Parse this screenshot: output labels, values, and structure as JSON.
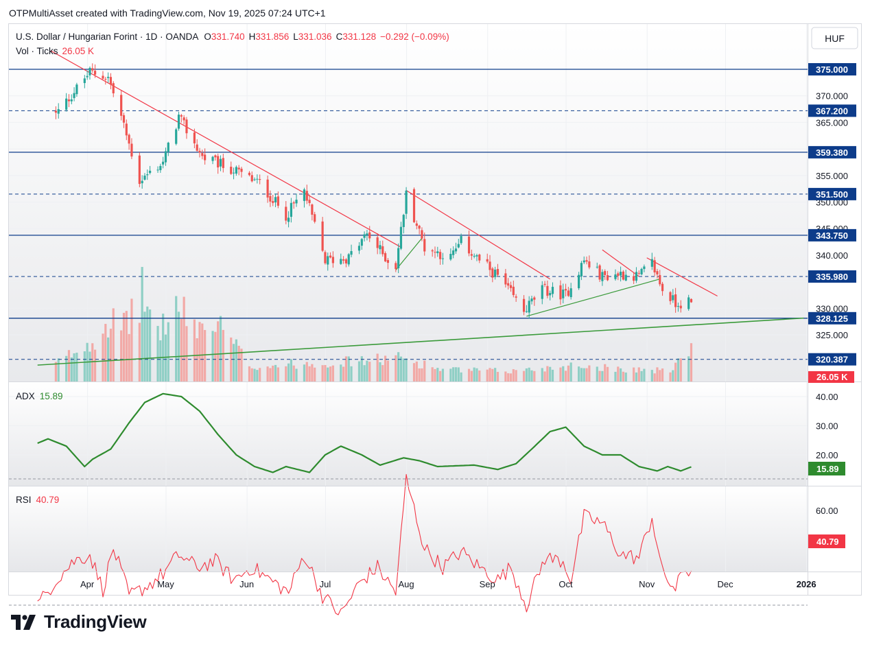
{
  "header": {
    "credit": "OTPMultiAsset created with TradingView.com, Nov 19, 2025 07:24 UTC+1"
  },
  "logo": {
    "text": "TradingView",
    "icon": "tradingview-logo-icon"
  },
  "main_pane": {
    "symbol": "U.S. Dollar / Hungarian Forint · 1D · OANDA",
    "ohlc": {
      "o_label": "O",
      "o": "331.740",
      "h_label": "H",
      "h": "331.856",
      "l_label": "L",
      "l": "331.036",
      "c_label": "C",
      "c": "331.128",
      "change": "−0.292 (−0.09%)"
    },
    "volume_legend": {
      "label": "Vol · Ticks",
      "value": "26.05 K"
    },
    "currency_button": "HUF"
  },
  "adx_pane": {
    "label": "ADX",
    "value": "15.89"
  },
  "rsi_pane": {
    "label": "RSI",
    "value": "40.79"
  },
  "colors": {
    "up": "#26a69a",
    "down": "#ef5350",
    "level_line": "#0d3c8a",
    "trendline_down": "#f23645",
    "trendline_up": "#3a9a3a",
    "adx_line": "#2e8b2e",
    "rsi_line": "#f23645"
  },
  "chart_data": [
    {
      "type": "candlestick",
      "name": "price",
      "x_axis": {
        "ticks": [
          "Apr",
          "May",
          "Jun",
          "Jul",
          "Aug",
          "Sep",
          "Oct",
          "Nov",
          "Dec",
          "2026"
        ]
      },
      "y_axis": {
        "range": [
          320,
          377
        ],
        "ticks": [
          "370.000",
          "365.000",
          "355.000",
          "350.000",
          "345.000",
          "340.000",
          "330.000",
          "325.000"
        ]
      },
      "price_levels": [
        {
          "value": 375.0,
          "label": "375.000",
          "style": "solid"
        },
        {
          "value": 367.2,
          "label": "367.200",
          "style": "dashed"
        },
        {
          "value": 359.38,
          "label": "359.380",
          "style": "solid"
        },
        {
          "value": 351.5,
          "label": "351.500",
          "style": "dashed"
        },
        {
          "value": 343.75,
          "label": "343.750",
          "style": "solid"
        },
        {
          "value": 335.98,
          "label": "335.980",
          "style": "dashed"
        },
        {
          "value": 328.125,
          "label": "328.125",
          "style": "solid"
        },
        {
          "value": 320.387,
          "label": "320.387",
          "style": "dashed"
        }
      ],
      "key_closes": [
        {
          "date": "2025-03-20",
          "close": 366.5
        },
        {
          "date": "2025-04-02",
          "close": 374.5
        },
        {
          "date": "2025-04-09",
          "close": 373.5
        },
        {
          "date": "2025-04-14",
          "close": 366.0
        },
        {
          "date": "2025-04-21",
          "close": 354.0
        },
        {
          "date": "2025-04-30",
          "close": 357.5
        },
        {
          "date": "2025-05-06",
          "close": 366.0
        },
        {
          "date": "2025-05-15",
          "close": 358.5
        },
        {
          "date": "2025-05-27",
          "close": 356.0
        },
        {
          "date": "2025-06-06",
          "close": 353.5
        },
        {
          "date": "2025-06-16",
          "close": 347.5
        },
        {
          "date": "2025-06-23",
          "close": 352.0
        },
        {
          "date": "2025-07-01",
          "close": 339.0
        },
        {
          "date": "2025-07-10",
          "close": 339.5
        },
        {
          "date": "2025-07-17",
          "close": 344.0
        },
        {
          "date": "2025-07-25",
          "close": 339.0
        },
        {
          "date": "2025-07-28",
          "close": 338.0
        },
        {
          "date": "2025-08-01",
          "close": 351.5
        },
        {
          "date": "2025-08-08",
          "close": 341.5
        },
        {
          "date": "2025-08-18",
          "close": 339.5
        },
        {
          "date": "2025-08-22",
          "close": 342.5
        },
        {
          "date": "2025-08-29",
          "close": 339.0
        },
        {
          "date": "2025-09-05",
          "close": 336.0
        },
        {
          "date": "2025-09-15",
          "close": 329.5
        },
        {
          "date": "2025-09-22",
          "close": 333.5
        },
        {
          "date": "2025-10-01",
          "close": 332.5
        },
        {
          "date": "2025-10-08",
          "close": 339.0
        },
        {
          "date": "2025-10-15",
          "close": 336.0
        },
        {
          "date": "2025-10-22",
          "close": 336.5
        },
        {
          "date": "2025-10-29",
          "close": 336.0
        },
        {
          "date": "2025-11-03",
          "close": 338.5
        },
        {
          "date": "2025-11-07",
          "close": 333.5
        },
        {
          "date": "2025-11-12",
          "close": 331.0
        },
        {
          "date": "2025-11-18",
          "close": 331.128
        }
      ],
      "trendlines": [
        {
          "color": "down",
          "from": {
            "date": "2025-03-18",
            "value": 378.5
          },
          "to": {
            "date": "2025-07-30",
            "value": 341.5
          }
        },
        {
          "color": "down",
          "from": {
            "date": "2025-08-01",
            "value": 352.2
          },
          "to": {
            "date": "2025-09-25",
            "value": 335.5
          }
        },
        {
          "color": "down",
          "from": {
            "date": "2025-10-15",
            "value": 341.0
          },
          "to": {
            "date": "2025-10-29",
            "value": 336.0
          }
        },
        {
          "color": "down",
          "from": {
            "date": "2025-11-01",
            "value": 339.5
          },
          "to": {
            "date": "2025-11-28",
            "value": 332.3
          }
        },
        {
          "color": "up",
          "from": {
            "date": "2025-03-13",
            "value": 319.3
          },
          "to": {
            "date": "2025-12-31",
            "value": 328.15
          }
        },
        {
          "color": "up",
          "from": {
            "date": "2025-07-28",
            "value": 337.2
          },
          "to": {
            "date": "2025-08-07",
            "value": 343.2
          }
        },
        {
          "color": "up",
          "from": {
            "date": "2025-09-16",
            "value": 328.5
          },
          "to": {
            "date": "2025-11-06",
            "value": 335.5
          }
        }
      ]
    },
    {
      "type": "bar",
      "name": "Vol · Ticks",
      "last_value": "26.05 K",
      "y_max_k": 70,
      "key_values_k": [
        {
          "date": "2025-03-20",
          "value": 12
        },
        {
          "date": "2025-04-03",
          "value": 28
        },
        {
          "date": "2025-04-09",
          "value": 42
        },
        {
          "date": "2025-04-15",
          "value": 36
        },
        {
          "date": "2025-04-22",
          "value": 60
        },
        {
          "date": "2025-04-28",
          "value": 34
        },
        {
          "date": "2025-05-05",
          "value": 50
        },
        {
          "date": "2025-05-12",
          "value": 38
        },
        {
          "date": "2025-05-22",
          "value": 36
        },
        {
          "date": "2025-06-03",
          "value": 10
        },
        {
          "date": "2025-06-20",
          "value": 12
        },
        {
          "date": "2025-07-15",
          "value": 14
        },
        {
          "date": "2025-07-30",
          "value": 16
        },
        {
          "date": "2025-08-15",
          "value": 8
        },
        {
          "date": "2025-09-10",
          "value": 7
        },
        {
          "date": "2025-10-05",
          "value": 11
        },
        {
          "date": "2025-10-20",
          "value": 9
        },
        {
          "date": "2025-11-10",
          "value": 7
        },
        {
          "date": "2025-11-18",
          "value": 26.05
        }
      ]
    },
    {
      "type": "line",
      "name": "ADX",
      "y_axis": {
        "range": [
          7,
          46
        ],
        "ticks": [
          "40.00",
          "30.00",
          "20.00"
        ]
      },
      "points": [
        {
          "date": "2025-03-13",
          "value": 24
        },
        {
          "date": "2025-03-17",
          "value": 25.5
        },
        {
          "date": "2025-03-24",
          "value": 23
        },
        {
          "date": "2025-03-31",
          "value": 16
        },
        {
          "date": "2025-04-03",
          "value": 18.5
        },
        {
          "date": "2025-04-10",
          "value": 22
        },
        {
          "date": "2025-04-17",
          "value": 31
        },
        {
          "date": "2025-04-23",
          "value": 38
        },
        {
          "date": "2025-04-30",
          "value": 41
        },
        {
          "date": "2025-05-07",
          "value": 40
        },
        {
          "date": "2025-05-14",
          "value": 35
        },
        {
          "date": "2025-05-21",
          "value": 27
        },
        {
          "date": "2025-05-28",
          "value": 20
        },
        {
          "date": "2025-06-04",
          "value": 16
        },
        {
          "date": "2025-06-11",
          "value": 14
        },
        {
          "date": "2025-06-16",
          "value": 16
        },
        {
          "date": "2025-06-25",
          "value": 14
        },
        {
          "date": "2025-07-01",
          "value": 20
        },
        {
          "date": "2025-07-07",
          "value": 23
        },
        {
          "date": "2025-07-15",
          "value": 20
        },
        {
          "date": "2025-07-22",
          "value": 16.5
        },
        {
          "date": "2025-07-31",
          "value": 19
        },
        {
          "date": "2025-08-06",
          "value": 18
        },
        {
          "date": "2025-08-13",
          "value": 16
        },
        {
          "date": "2025-08-27",
          "value": 16.5
        },
        {
          "date": "2025-09-05",
          "value": 15
        },
        {
          "date": "2025-09-12",
          "value": 17
        },
        {
          "date": "2025-09-18",
          "value": 22
        },
        {
          "date": "2025-09-25",
          "value": 28
        },
        {
          "date": "2025-10-01",
          "value": 29.5
        },
        {
          "date": "2025-10-08",
          "value": 23
        },
        {
          "date": "2025-10-15",
          "value": 20
        },
        {
          "date": "2025-10-22",
          "value": 20
        },
        {
          "date": "2025-10-29",
          "value": 16
        },
        {
          "date": "2025-11-05",
          "value": 14.5
        },
        {
          "date": "2025-11-09",
          "value": 16
        },
        {
          "date": "2025-11-14",
          "value": 14.5
        },
        {
          "date": "2025-11-18",
          "value": 15.89
        }
      ]
    },
    {
      "type": "line",
      "name": "RSI",
      "y_axis": {
        "range": [
          21,
          74
        ],
        "ticks": [
          "60.00"
        ]
      },
      "points": [
        {
          "date": "2025-03-13",
          "value": 30
        },
        {
          "date": "2025-03-20",
          "value": 38
        },
        {
          "date": "2025-03-27",
          "value": 44
        },
        {
          "date": "2025-04-02",
          "value": 46
        },
        {
          "date": "2025-04-07",
          "value": 35
        },
        {
          "date": "2025-04-11",
          "value": 48
        },
        {
          "date": "2025-04-17",
          "value": 33
        },
        {
          "date": "2025-04-24",
          "value": 36
        },
        {
          "date": "2025-04-30",
          "value": 40
        },
        {
          "date": "2025-05-06",
          "value": 46
        },
        {
          "date": "2025-05-13",
          "value": 42
        },
        {
          "date": "2025-05-20",
          "value": 44
        },
        {
          "date": "2025-05-27",
          "value": 38
        },
        {
          "date": "2025-06-03",
          "value": 42
        },
        {
          "date": "2025-06-10",
          "value": 38
        },
        {
          "date": "2025-06-17",
          "value": 34
        },
        {
          "date": "2025-06-23",
          "value": 46
        },
        {
          "date": "2025-06-30",
          "value": 33
        },
        {
          "date": "2025-07-07",
          "value": 27
        },
        {
          "date": "2025-07-14",
          "value": 37
        },
        {
          "date": "2025-07-21",
          "value": 42
        },
        {
          "date": "2025-07-28",
          "value": 34
        },
        {
          "date": "2025-08-01",
          "value": 70
        },
        {
          "date": "2025-08-08",
          "value": 48
        },
        {
          "date": "2025-08-15",
          "value": 42
        },
        {
          "date": "2025-08-22",
          "value": 47
        },
        {
          "date": "2025-08-29",
          "value": 42
        },
        {
          "date": "2025-09-05",
          "value": 38
        },
        {
          "date": "2025-09-10",
          "value": 42
        },
        {
          "date": "2025-09-16",
          "value": 30
        },
        {
          "date": "2025-09-23",
          "value": 45
        },
        {
          "date": "2025-09-30",
          "value": 44
        },
        {
          "date": "2025-10-03",
          "value": 38
        },
        {
          "date": "2025-10-08",
          "value": 58
        },
        {
          "date": "2025-10-15",
          "value": 56
        },
        {
          "date": "2025-10-22",
          "value": 46
        },
        {
          "date": "2025-10-29",
          "value": 45
        },
        {
          "date": "2025-11-03",
          "value": 58
        },
        {
          "date": "2025-11-07",
          "value": 40
        },
        {
          "date": "2025-11-12",
          "value": 35
        },
        {
          "date": "2025-11-15",
          "value": 41
        },
        {
          "date": "2025-11-18",
          "value": 40.79
        }
      ]
    }
  ]
}
